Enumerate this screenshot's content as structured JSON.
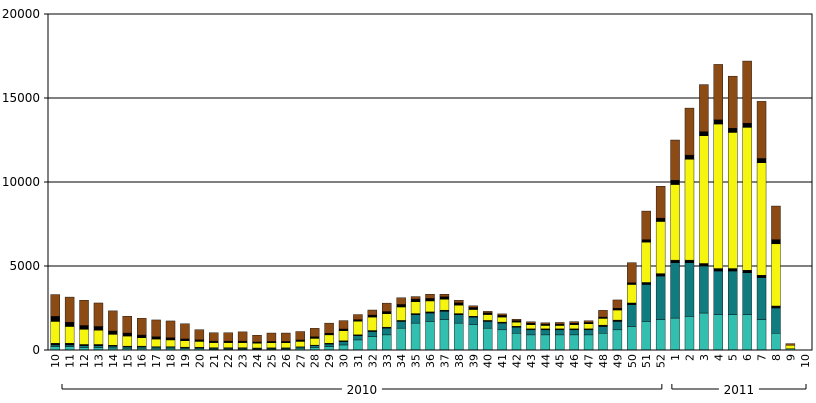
{
  "chart_data": {
    "type": "bar",
    "stacked": true,
    "ylim": [
      0,
      20000
    ],
    "yticks": [
      "0",
      "5000",
      "10000",
      "15000",
      "20000"
    ],
    "grid": true,
    "legend": "none",
    "x_groups": [
      {
        "label": "2010",
        "categories": [
          "10",
          "11",
          "12",
          "13",
          "14",
          "15",
          "16",
          "17",
          "18",
          "19",
          "20",
          "21",
          "22",
          "23",
          "24",
          "25",
          "26",
          "27",
          "28",
          "29",
          "30",
          "31",
          "32",
          "33",
          "34",
          "35",
          "36",
          "37",
          "38",
          "39",
          "40",
          "41",
          "42",
          "43",
          "44",
          "45",
          "46",
          "47",
          "48",
          "49",
          "50",
          "51",
          "52"
        ]
      },
      {
        "label": "2011",
        "categories": [
          "1",
          "2",
          "3",
          "4",
          "5",
          "6",
          "7",
          "8",
          "9",
          "10"
        ]
      }
    ],
    "categories": [
      "10",
      "11",
      "12",
      "13",
      "14",
      "15",
      "16",
      "17",
      "18",
      "19",
      "20",
      "21",
      "22",
      "23",
      "24",
      "25",
      "26",
      "27",
      "28",
      "29",
      "30",
      "31",
      "32",
      "33",
      "34",
      "35",
      "36",
      "37",
      "38",
      "39",
      "40",
      "41",
      "42",
      "43",
      "44",
      "45",
      "46",
      "47",
      "48",
      "49",
      "50",
      "51",
      "52",
      "1",
      "2",
      "3",
      "4",
      "5",
      "6",
      "7",
      "8",
      "9",
      "10"
    ],
    "colors": {
      "s1": "#33bfb0",
      "s2": "#107c80",
      "s3": "#000000",
      "s4": "#f5f50f",
      "s5": "#000000",
      "s6": "#8c4a14"
    },
    "series": [
      {
        "key": "s1",
        "values": [
          200,
          200,
          150,
          150,
          120,
          100,
          100,
          100,
          100,
          80,
          80,
          60,
          60,
          60,
          50,
          60,
          60,
          100,
          150,
          200,
          300,
          600,
          800,
          900,
          1300,
          1600,
          1700,
          1800,
          1600,
          1500,
          1300,
          1200,
          1000,
          900,
          900,
          900,
          900,
          900,
          1000,
          1200,
          1400,
          1700,
          1800,
          1900,
          2000,
          2200,
          2100,
          2100,
          2100,
          1800,
          1000,
          80,
          0
        ]
      },
      {
        "key": "s2",
        "values": [
          100,
          100,
          100,
          100,
          100,
          80,
          80,
          60,
          60,
          60,
          50,
          50,
          50,
          50,
          40,
          40,
          40,
          60,
          100,
          150,
          200,
          250,
          300,
          400,
          400,
          500,
          500,
          500,
          500,
          450,
          400,
          400,
          350,
          300,
          300,
          300,
          300,
          300,
          400,
          500,
          1300,
          2200,
          2600,
          3300,
          3200,
          2800,
          2600,
          2600,
          2500,
          2500,
          1500,
          0,
          0
        ]
      },
      {
        "key": "s3",
        "values": [
          100,
          100,
          80,
          80,
          60,
          50,
          50,
          40,
          40,
          30,
          30,
          30,
          30,
          30,
          30,
          30,
          30,
          30,
          40,
          50,
          50,
          60,
          60,
          60,
          60,
          70,
          70,
          70,
          70,
          60,
          60,
          60,
          60,
          60,
          60,
          60,
          60,
          60,
          80,
          80,
          100,
          120,
          150,
          150,
          150,
          150,
          150,
          150,
          150,
          150,
          120,
          0,
          0
        ]
      },
      {
        "key": "s4",
        "values": [
          1300,
          1000,
          900,
          850,
          650,
          600,
          500,
          450,
          400,
          380,
          350,
          300,
          300,
          300,
          280,
          300,
          300,
          320,
          400,
          500,
          600,
          800,
          800,
          800,
          800,
          700,
          650,
          650,
          500,
          400,
          350,
          300,
          250,
          250,
          200,
          200,
          250,
          300,
          400,
          600,
          1100,
          2400,
          3100,
          4500,
          6000,
          7600,
          8600,
          8100,
          8500,
          6700,
          3700,
          200,
          0
        ]
      },
      {
        "key": "s5",
        "values": [
          300,
          250,
          230,
          220,
          200,
          180,
          160,
          140,
          130,
          110,
          100,
          90,
          90,
          90,
          80,
          80,
          80,
          90,
          100,
          100,
          100,
          100,
          120,
          130,
          150,
          160,
          150,
          150,
          140,
          120,
          100,
          100,
          90,
          90,
          80,
          80,
          80,
          80,
          80,
          100,
          100,
          150,
          200,
          250,
          250,
          250,
          250,
          250,
          250,
          250,
          250,
          0,
          0
        ]
      },
      {
        "key": "s6",
        "values": [
          1300,
          1500,
          1500,
          1400,
          1200,
          1000,
          1000,
          1000,
          1000,
          900,
          600,
          500,
          500,
          550,
          400,
          500,
          500,
          500,
          500,
          600,
          500,
          300,
          300,
          500,
          400,
          150,
          250,
          150,
          150,
          100,
          90,
          90,
          80,
          80,
          80,
          100,
          100,
          100,
          400,
          500,
          1200,
          1700,
          1900,
          2400,
          2800,
          2800,
          3300,
          3100,
          3700,
          3400,
          2000,
          100,
          0
        ]
      }
    ]
  }
}
